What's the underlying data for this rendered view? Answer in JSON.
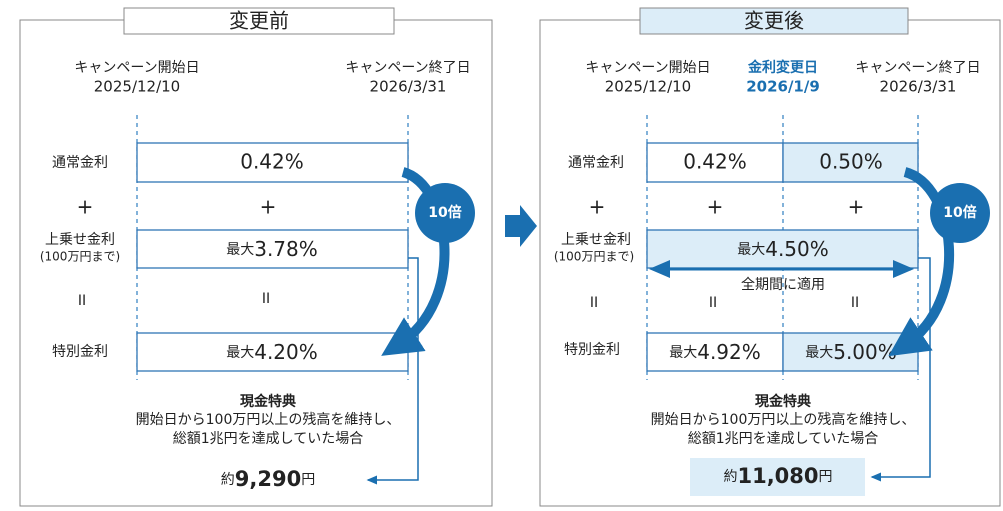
{
  "before": {
    "title": "変更前",
    "start_label": "キャンペーン開始日",
    "start_date": "2025/12/10",
    "end_label": "キャンペーン終了日",
    "end_date": "2026/3/31",
    "labels": {
      "normal": "通常金利",
      "bonus": "上乗せ金利",
      "bonus_note": "(100万円まで)",
      "special": "特別金利"
    },
    "plus": "+",
    "equals": "II",
    "normal_rate": "0.42%",
    "bonus_rate": {
      "prefix": "最大",
      "value": "3.78%"
    },
    "special_rate": {
      "prefix": "最大",
      "value": "4.20%"
    },
    "multiplier": "10倍",
    "benefit": {
      "title": "現金特典",
      "lines": [
        "開始日から100万円以上の残高を維持し、",
        "総額1兆円を達成していた場合"
      ],
      "prefix": "約",
      "amount": "9,290",
      "unit": "円"
    }
  },
  "after": {
    "title": "変更後",
    "start_label": "キャンペーン開始日",
    "start_date": "2025/12/10",
    "change_label": "金利変更日",
    "change_date": "2026/1/9",
    "end_label": "キャンペーン終了日",
    "end_date": "2026/3/31",
    "labels": {
      "normal": "通常金利",
      "bonus": "上乗せ金利",
      "bonus_note": "(100万円まで)",
      "special": "特別金利"
    },
    "plus": "+",
    "equals": "II",
    "normal_rates": [
      "0.42%",
      "0.50%"
    ],
    "bonus_rate": {
      "prefix": "最大",
      "value": "4.50%"
    },
    "bonus_scope": "全期間に適用",
    "special_rates": [
      {
        "prefix": "最大",
        "value": "4.92%"
      },
      {
        "prefix": "最大",
        "value": "5.00%"
      }
    ],
    "multiplier": "10倍",
    "benefit": {
      "title": "現金特典",
      "lines": [
        "開始日から100万円以上の残高を維持し、",
        "総額1兆円を達成していた場合"
      ],
      "prefix": "約",
      "amount": "11,080",
      "unit": "円"
    }
  }
}
